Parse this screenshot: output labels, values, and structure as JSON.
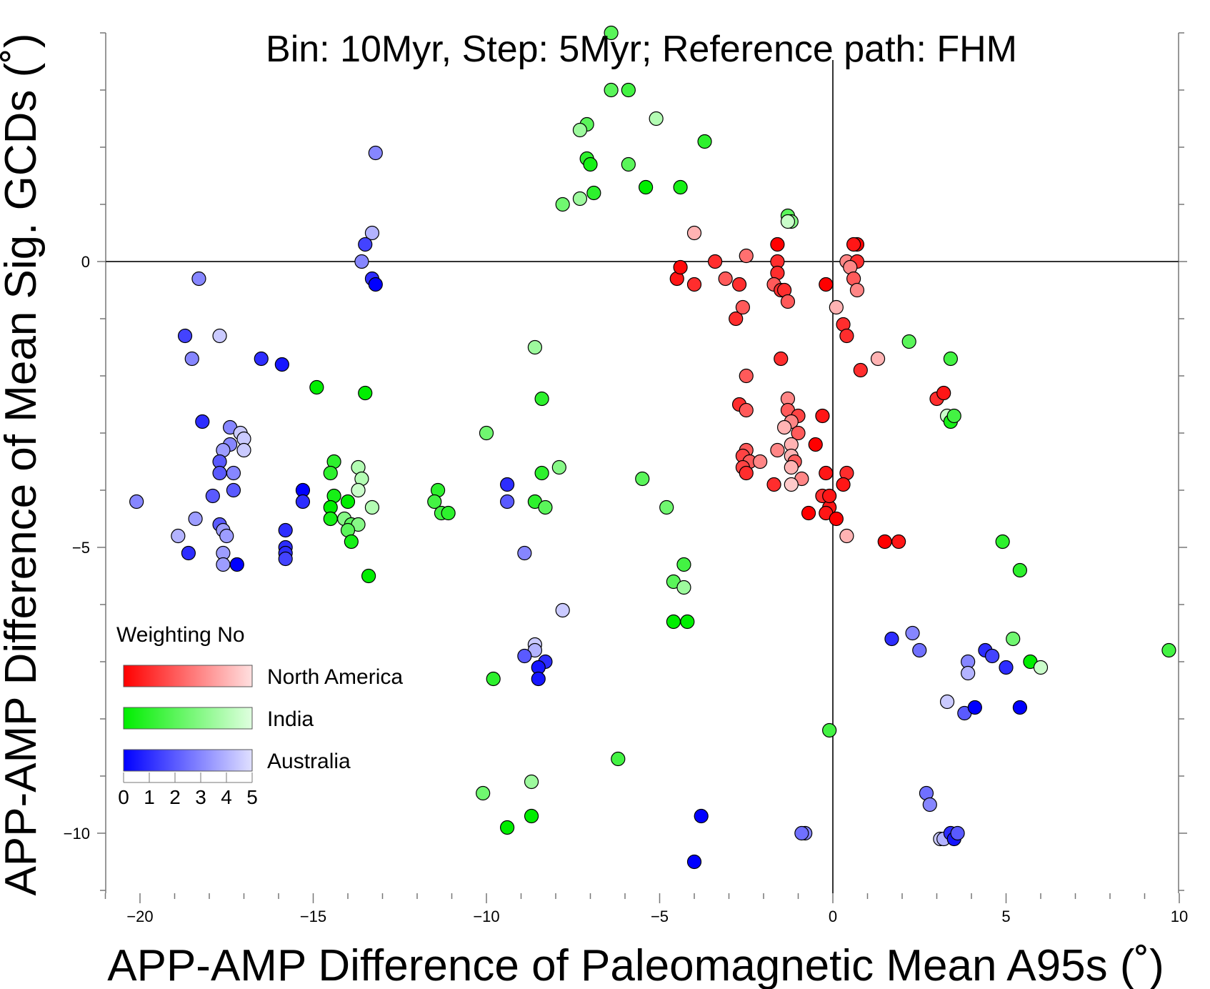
{
  "chart_data": {
    "type": "scatter",
    "title": "Bin: 10Myr, Step: 5Myr; Reference path: FHM",
    "xlabel": "APP-AMP Difference of Paleomagnetic Mean A95s (˚)",
    "ylabel": "APP-AMP Difference of Mean Sig. GCDs (˚)",
    "xlim": [
      -21,
      10
    ],
    "ylim": [
      -11,
      4
    ],
    "x_ticks": [
      -20,
      -15,
      -10,
      -5,
      0,
      5,
      10
    ],
    "x_tick_labels": [
      "−20",
      "−15",
      "−10",
      "−5",
      "0",
      "5",
      "10"
    ],
    "y_ticks": [
      0,
      -5,
      -10
    ],
    "y_tick_labels": [
      "0",
      "−5",
      "−10"
    ],
    "zero_lines": true,
    "grid": false,
    "legend": {
      "title": "Weighting No",
      "placement": "bottom-left",
      "scale_labels": [
        "0",
        "1",
        "2",
        "3",
        "4",
        "5"
      ],
      "entries": [
        {
          "name": "North America",
          "color_start": "#ff0000",
          "color_end": "#ffe0e0"
        },
        {
          "name": "India",
          "color_start": "#00ee00",
          "color_end": "#e0ffe0"
        },
        {
          "name": "Australia",
          "color_start": "#0000ff",
          "color_end": "#e0e0ff"
        }
      ]
    },
    "series": [
      {
        "name": "North America",
        "color": "#ff0000",
        "points": [
          [
            -4.5,
            -0.3,
            0.5
          ],
          [
            -4.4,
            -0.1,
            0.2
          ],
          [
            -4.0,
            -0.4,
            1.0
          ],
          [
            -4.0,
            0.5,
            4.0
          ],
          [
            -3.4,
            0.0,
            1.0
          ],
          [
            -3.1,
            -0.3,
            2.0
          ],
          [
            -2.7,
            -0.4,
            1.0
          ],
          [
            -2.5,
            0.1,
            2.5
          ],
          [
            -2.8,
            -1.0,
            1.0
          ],
          [
            -2.6,
            -0.8,
            2.0
          ],
          [
            -1.6,
            0.3,
            0.0
          ],
          [
            -1.6,
            0.0,
            1.0
          ],
          [
            -1.6,
            -0.2,
            1.0
          ],
          [
            -1.7,
            -0.4,
            2.0
          ],
          [
            -1.5,
            -0.5,
            1.0
          ],
          [
            -1.4,
            -0.5,
            1.0
          ],
          [
            -1.3,
            -0.7,
            2.0
          ],
          [
            -0.2,
            -0.4,
            0.0
          ],
          [
            0.1,
            -0.8,
            4.0
          ],
          [
            0.3,
            -1.1,
            1.0
          ],
          [
            0.4,
            -1.3,
            1.0
          ],
          [
            0.7,
            0.3,
            0.0
          ],
          [
            0.6,
            0.3,
            0.5
          ],
          [
            0.4,
            0.0,
            3.0
          ],
          [
            0.7,
            0.0,
            1.0
          ],
          [
            0.5,
            -0.1,
            3.0
          ],
          [
            0.6,
            -0.3,
            2.0
          ],
          [
            0.7,
            -0.5,
            3.0
          ],
          [
            1.3,
            -1.7,
            4.0
          ],
          [
            0.8,
            -1.9,
            1.0
          ],
          [
            -1.5,
            -1.7,
            1.0
          ],
          [
            -2.5,
            -2.0,
            2.0
          ],
          [
            -2.7,
            -2.5,
            1.0
          ],
          [
            -2.5,
            -2.6,
            2.0
          ],
          [
            -1.3,
            -2.4,
            3.0
          ],
          [
            -1.3,
            -2.6,
            2.0
          ],
          [
            -1.0,
            -2.7,
            1.5
          ],
          [
            -1.2,
            -2.8,
            3.0
          ],
          [
            -1.4,
            -2.9,
            4.0
          ],
          [
            -1.0,
            -3.0,
            2.0
          ],
          [
            -0.3,
            -2.7,
            0.5
          ],
          [
            -0.5,
            -3.2,
            0.0
          ],
          [
            -2.5,
            -3.3,
            2.0
          ],
          [
            -2.6,
            -3.4,
            1.5
          ],
          [
            -2.4,
            -3.5,
            2.0
          ],
          [
            -2.1,
            -3.5,
            3.0
          ],
          [
            -2.6,
            -3.6,
            1.5
          ],
          [
            -2.5,
            -3.7,
            1.0
          ],
          [
            -1.6,
            -3.3,
            3.0
          ],
          [
            -1.2,
            -3.2,
            4.0
          ],
          [
            -1.2,
            -3.4,
            4.0
          ],
          [
            -1.1,
            -3.5,
            2.0
          ],
          [
            -1.2,
            -3.6,
            4.0
          ],
          [
            -0.9,
            -3.8,
            3.0
          ],
          [
            -1.2,
            -3.9,
            4.5
          ],
          [
            -1.7,
            -3.9,
            1.0
          ],
          [
            -0.2,
            -3.7,
            0.5
          ],
          [
            0.4,
            -3.7,
            1.0
          ],
          [
            0.3,
            -3.9,
            0.5
          ],
          [
            -0.3,
            -4.1,
            1.0
          ],
          [
            -0.1,
            -4.3,
            0.5
          ],
          [
            -0.2,
            -4.4,
            0.5
          ],
          [
            -0.1,
            -4.1,
            0.5
          ],
          [
            -0.7,
            -4.4,
            0.0
          ],
          [
            0.1,
            -4.5,
            0.0
          ],
          [
            0.4,
            -4.8,
            4.0
          ],
          [
            1.5,
            -4.9,
            0.0
          ],
          [
            1.9,
            -4.9,
            0.5
          ],
          [
            3.0,
            -2.4,
            1.0
          ],
          [
            3.2,
            -2.3,
            0.5
          ]
        ]
      },
      {
        "name": "India",
        "color": "#00ee00",
        "points": [
          [
            -6.4,
            4.0,
            2.0
          ],
          [
            -6.4,
            3.0,
            2.0
          ],
          [
            -5.9,
            3.0,
            1.5
          ],
          [
            -5.1,
            2.5,
            4.0
          ],
          [
            -7.1,
            2.4,
            2.0
          ],
          [
            -7.3,
            2.3,
            3.5
          ],
          [
            -3.7,
            2.1,
            1.0
          ],
          [
            -7.1,
            1.8,
            1.0
          ],
          [
            -7.0,
            1.7,
            0.5
          ],
          [
            -5.9,
            1.7,
            2.0
          ],
          [
            -5.4,
            1.3,
            0.0
          ],
          [
            -4.4,
            1.3,
            0.5
          ],
          [
            -6.9,
            1.2,
            1.0
          ],
          [
            -7.3,
            1.1,
            3.5
          ],
          [
            -7.8,
            1.0,
            2.5
          ],
          [
            -1.3,
            0.8,
            2.0
          ],
          [
            -1.2,
            0.7,
            3.0
          ],
          [
            -1.3,
            0.7,
            4.5
          ],
          [
            2.2,
            -1.4,
            2.0
          ],
          [
            3.4,
            -1.7,
            1.5
          ],
          [
            -8.6,
            -1.5,
            3.5
          ],
          [
            -8.4,
            -2.4,
            1.0
          ],
          [
            -14.9,
            -2.2,
            0.0
          ],
          [
            -13.5,
            -2.3,
            0.0
          ],
          [
            -10.0,
            -3.0,
            2.5
          ],
          [
            -7.9,
            -3.6,
            3.0
          ],
          [
            -8.4,
            -3.7,
            1.0
          ],
          [
            -5.5,
            -3.8,
            2.0
          ],
          [
            -4.8,
            -4.3,
            2.5
          ],
          [
            -8.6,
            -4.2,
            1.0
          ],
          [
            -8.3,
            -4.3,
            2.0
          ],
          [
            -11.4,
            -4.0,
            1.0
          ],
          [
            -11.5,
            -4.2,
            1.5
          ],
          [
            -11.3,
            -4.4,
            1.5
          ],
          [
            -11.1,
            -4.4,
            1.0
          ],
          [
            -14.4,
            -3.5,
            1.0
          ],
          [
            -14.5,
            -3.7,
            1.0
          ],
          [
            -14.4,
            -4.1,
            0.5
          ],
          [
            -14.0,
            -4.2,
            0.0
          ],
          [
            -14.5,
            -4.3,
            0.0
          ],
          [
            -14.5,
            -4.5,
            0.5
          ],
          [
            -14.1,
            -4.5,
            3.0
          ],
          [
            -13.9,
            -4.6,
            2.0
          ],
          [
            -13.7,
            -4.6,
            3.0
          ],
          [
            -14.0,
            -4.7,
            2.0
          ],
          [
            -13.9,
            -4.9,
            0.5
          ],
          [
            -13.7,
            -3.6,
            4.0
          ],
          [
            -13.6,
            -3.8,
            4.0
          ],
          [
            -13.7,
            -4.0,
            4.5
          ],
          [
            -13.3,
            -4.3,
            4.0
          ],
          [
            -13.4,
            -5.5,
            0.0
          ],
          [
            -4.3,
            -5.3,
            1.5
          ],
          [
            -4.6,
            -5.6,
            2.0
          ],
          [
            -4.3,
            -5.7,
            3.5
          ],
          [
            -4.6,
            -6.3,
            0.0
          ],
          [
            -4.2,
            -6.3,
            0.0
          ],
          [
            -9.8,
            -7.3,
            1.0
          ],
          [
            3.3,
            -2.7,
            4.5
          ],
          [
            3.4,
            -2.8,
            0.5
          ],
          [
            3.5,
            -2.7,
            1.5
          ],
          [
            4.9,
            -4.9,
            1.0
          ],
          [
            5.4,
            -5.4,
            1.0
          ],
          [
            5.2,
            -6.6,
            2.5
          ],
          [
            5.7,
            -7.0,
            0.0
          ],
          [
            6.0,
            -7.1,
            4.5
          ],
          [
            9.7,
            -6.8,
            1.5
          ],
          [
            -0.1,
            -8.2,
            1.5
          ],
          [
            -6.2,
            -8.7,
            1.5
          ],
          [
            -10.1,
            -9.3,
            2.5
          ],
          [
            -8.7,
            -9.1,
            3.5
          ],
          [
            -8.7,
            -9.7,
            0.0
          ],
          [
            -9.4,
            -9.9,
            0.0
          ]
        ]
      },
      {
        "name": "Australia",
        "color": "#0000ff",
        "points": [
          [
            -13.2,
            1.9,
            3.0
          ],
          [
            -13.3,
            0.5,
            4.0
          ],
          [
            -13.5,
            0.3,
            1.5
          ],
          [
            -13.6,
            0.0,
            3.0
          ],
          [
            -13.3,
            -0.3,
            1.0
          ],
          [
            -13.2,
            -0.4,
            0.0
          ],
          [
            -18.3,
            -0.3,
            3.0
          ],
          [
            -18.7,
            -1.3,
            1.5
          ],
          [
            -17.7,
            -1.3,
            4.5
          ],
          [
            -18.5,
            -1.7,
            3.0
          ],
          [
            -16.5,
            -1.7,
            1.0
          ],
          [
            -15.9,
            -1.8,
            0.5
          ],
          [
            -18.2,
            -2.8,
            1.0
          ],
          [
            -17.4,
            -2.9,
            3.0
          ],
          [
            -17.1,
            -3.0,
            4.5
          ],
          [
            -17.0,
            -3.1,
            4.5
          ],
          [
            -17.4,
            -3.2,
            3.0
          ],
          [
            -17.6,
            -3.3,
            3.5
          ],
          [
            -17.0,
            -3.3,
            4.5
          ],
          [
            -17.7,
            -3.5,
            2.0
          ],
          [
            -17.3,
            -3.7,
            3.0
          ],
          [
            -17.7,
            -3.7,
            2.0
          ],
          [
            -17.3,
            -4.0,
            2.0
          ],
          [
            -17.9,
            -4.1,
            2.0
          ],
          [
            -15.3,
            -4.0,
            0.0
          ],
          [
            -15.3,
            -4.2,
            1.0
          ],
          [
            -20.1,
            -4.2,
            3.0
          ],
          [
            -18.4,
            -4.5,
            3.5
          ],
          [
            -17.7,
            -4.6,
            2.0
          ],
          [
            -17.6,
            -4.7,
            3.5
          ],
          [
            -18.9,
            -4.8,
            4.0
          ],
          [
            -17.5,
            -4.8,
            3.5
          ],
          [
            -15.8,
            -4.7,
            1.0
          ],
          [
            -15.8,
            -5.0,
            1.0
          ],
          [
            -15.8,
            -5.1,
            1.0
          ],
          [
            -15.8,
            -5.2,
            1.5
          ],
          [
            -17.6,
            -5.1,
            3.5
          ],
          [
            -17.6,
            -5.3,
            3.5
          ],
          [
            -17.2,
            -5.3,
            0.0
          ],
          [
            -18.6,
            -5.1,
            1.0
          ],
          [
            -9.4,
            -3.9,
            1.0
          ],
          [
            -9.4,
            -4.2,
            2.0
          ],
          [
            -8.9,
            -5.1,
            3.0
          ],
          [
            -7.8,
            -6.1,
            4.5
          ],
          [
            -8.6,
            -6.7,
            4.5
          ],
          [
            -8.6,
            -6.8,
            4.0
          ],
          [
            -8.9,
            -6.9,
            2.0
          ],
          [
            -8.3,
            -7.0,
            1.0
          ],
          [
            -8.5,
            -7.1,
            0.5
          ],
          [
            -8.5,
            -7.3,
            0.5
          ],
          [
            1.7,
            -6.6,
            1.0
          ],
          [
            2.3,
            -6.5,
            3.0
          ],
          [
            2.5,
            -6.8,
            2.5
          ],
          [
            4.4,
            -6.8,
            1.0
          ],
          [
            4.6,
            -6.9,
            1.5
          ],
          [
            3.9,
            -7.0,
            3.0
          ],
          [
            3.9,
            -7.2,
            4.0
          ],
          [
            5.0,
            -7.1,
            1.0
          ],
          [
            3.3,
            -7.7,
            4.5
          ],
          [
            3.8,
            -7.9,
            2.0
          ],
          [
            4.1,
            -7.8,
            0.0
          ],
          [
            5.4,
            -7.8,
            0.0
          ],
          [
            -3.8,
            -9.7,
            0.0
          ],
          [
            -4.0,
            -10.5,
            0.0
          ],
          [
            -0.8,
            -10.0,
            3.0
          ],
          [
            -0.9,
            -10.0,
            2.5
          ],
          [
            2.7,
            -9.3,
            2.5
          ],
          [
            2.8,
            -9.5,
            3.0
          ],
          [
            3.1,
            -10.1,
            4.5
          ],
          [
            3.2,
            -10.1,
            4.0
          ],
          [
            3.4,
            -10.0,
            1.0
          ],
          [
            3.5,
            -10.1,
            0.5
          ],
          [
            3.6,
            -10.0,
            2.0
          ]
        ]
      }
    ]
  }
}
